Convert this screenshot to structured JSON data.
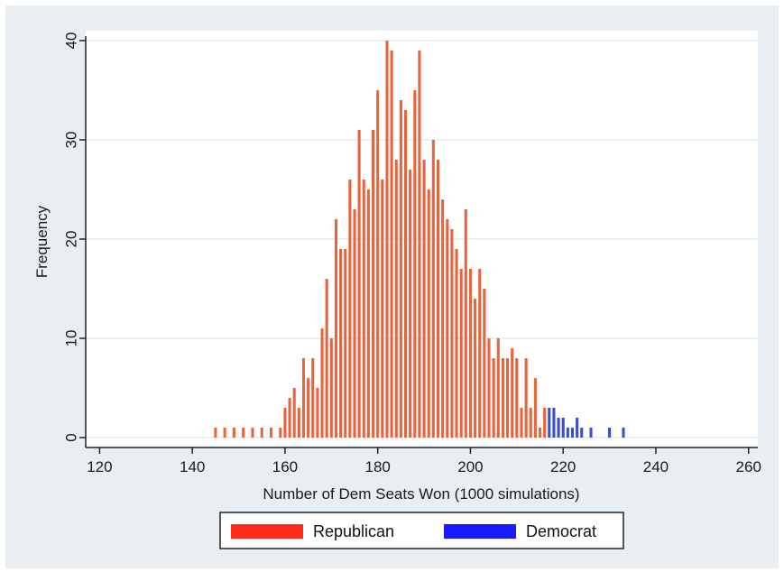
{
  "chart_data": {
    "type": "bar",
    "title": "",
    "xlabel": "Number of Dem Seats Won (1000 simulations)",
    "ylabel": "Frequency",
    "xlim": [
      117,
      262
    ],
    "ylim": [
      -1,
      41
    ],
    "xticks": [
      120,
      140,
      160,
      180,
      200,
      220,
      240,
      260
    ],
    "yticks": [
      0,
      10,
      20,
      30,
      40
    ],
    "grid": true,
    "legend_position": "bottom",
    "colors": {
      "Republican": "#e8643c",
      "Democrat": "#3b4fcc",
      "legend_Republican": "#ff2a1a",
      "legend_Democrat": "#1a1aff",
      "background": "#e8eef2",
      "plot_area": "#ffffff"
    },
    "series": [
      {
        "name": "Republican",
        "points": [
          [
            145,
            1
          ],
          [
            147,
            1
          ],
          [
            149,
            1
          ],
          [
            151,
            1
          ],
          [
            153,
            1
          ],
          [
            155,
            1
          ],
          [
            157,
            1
          ],
          [
            159,
            1
          ],
          [
            160,
            3
          ],
          [
            161,
            4
          ],
          [
            162,
            5
          ],
          [
            163,
            3
          ],
          [
            164,
            8
          ],
          [
            165,
            6
          ],
          [
            166,
            8
          ],
          [
            167,
            5
          ],
          [
            168,
            11
          ],
          [
            169,
            16
          ],
          [
            170,
            10
          ],
          [
            171,
            22
          ],
          [
            172,
            19
          ],
          [
            173,
            19
          ],
          [
            174,
            26
          ],
          [
            175,
            23
          ],
          [
            176,
            31
          ],
          [
            177,
            26
          ],
          [
            178,
            25
          ],
          [
            179,
            31
          ],
          [
            180,
            35
          ],
          [
            181,
            26
          ],
          [
            182,
            40
          ],
          [
            183,
            39
          ],
          [
            184,
            28
          ],
          [
            185,
            34
          ],
          [
            186,
            33
          ],
          [
            187,
            27
          ],
          [
            188,
            35
          ],
          [
            189,
            39
          ],
          [
            190,
            28
          ],
          [
            191,
            25
          ],
          [
            192,
            30
          ],
          [
            193,
            28
          ],
          [
            194,
            24
          ],
          [
            195,
            22
          ],
          [
            196,
            21
          ],
          [
            197,
            19
          ],
          [
            198,
            17
          ],
          [
            199,
            23
          ],
          [
            200,
            17
          ],
          [
            201,
            14
          ],
          [
            202,
            17
          ],
          [
            203,
            15
          ],
          [
            204,
            10
          ],
          [
            205,
            8
          ],
          [
            206,
            10
          ],
          [
            207,
            8
          ],
          [
            208,
            8
          ],
          [
            209,
            9
          ],
          [
            210,
            8
          ],
          [
            211,
            3
          ],
          [
            212,
            8
          ],
          [
            213,
            3
          ],
          [
            214,
            6
          ],
          [
            215,
            1
          ],
          [
            216,
            3
          ]
        ]
      },
      {
        "name": "Democrat",
        "points": [
          [
            217,
            3
          ],
          [
            218,
            3
          ],
          [
            219,
            2
          ],
          [
            220,
            2
          ],
          [
            221,
            1
          ],
          [
            222,
            1
          ],
          [
            223,
            2
          ],
          [
            224,
            1
          ],
          [
            226,
            1
          ],
          [
            230,
            1
          ],
          [
            233,
            1
          ]
        ]
      }
    ]
  }
}
